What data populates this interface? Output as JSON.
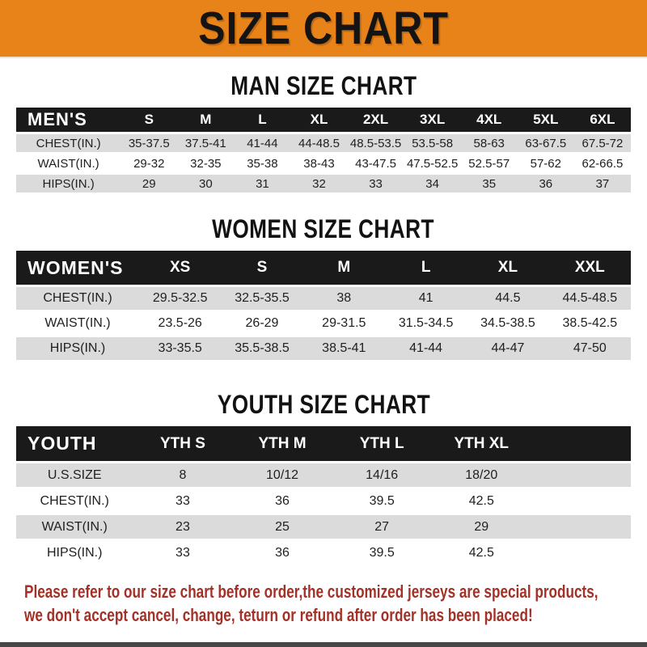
{
  "banner": {
    "title": "SIZE CHART"
  },
  "colors": {
    "banner_orange": "#E8831A",
    "header_black": "#1A1A1A",
    "row_gray": "#DBDBDB",
    "footer_red": "#A33127",
    "bottom_bar": "#474747"
  },
  "men": {
    "section_title": "MAN SIZE CHART",
    "header_label": "MEN'S",
    "columns": [
      "S",
      "M",
      "L",
      "XL",
      "2XL",
      "3XL",
      "4XL",
      "5XL",
      "6XL"
    ],
    "rows": [
      {
        "label": "CHEST(IN.)",
        "values": [
          "35-37.5",
          "37.5-41",
          "41-44",
          "44-48.5",
          "48.5-53.5",
          "53.5-58",
          "58-63",
          "63-67.5",
          "67.5-72"
        ]
      },
      {
        "label": "WAIST(IN.)",
        "values": [
          "29-32",
          "32-35",
          "35-38",
          "38-43",
          "43-47.5",
          "47.5-52.5",
          "52.5-57",
          "57-62",
          "62-66.5"
        ]
      },
      {
        "label": "HIPS(IN.)",
        "values": [
          "29",
          "30",
          "31",
          "32",
          "33",
          "34",
          "35",
          "36",
          "37"
        ]
      }
    ]
  },
  "women": {
    "section_title": "WOMEN SIZE CHART",
    "header_label": "WOMEN'S",
    "columns": [
      "XS",
      "S",
      "M",
      "L",
      "XL",
      "XXL"
    ],
    "rows": [
      {
        "label": "CHEST(IN.)",
        "values": [
          "29.5-32.5",
          "32.5-35.5",
          "38",
          "41",
          "44.5",
          "44.5-48.5"
        ]
      },
      {
        "label": "WAIST(IN.)",
        "values": [
          "23.5-26",
          "26-29",
          "29-31.5",
          "31.5-34.5",
          "34.5-38.5",
          "38.5-42.5"
        ]
      },
      {
        "label": "HIPS(IN.)",
        "values": [
          "33-35.5",
          "35.5-38.5",
          "38.5-41",
          "41-44",
          "44-47",
          "47-50"
        ]
      }
    ]
  },
  "youth": {
    "section_title": "YOUTH SIZE CHART",
    "header_label": "YOUTH",
    "columns": [
      "YTH S",
      "YTH M",
      "YTH L",
      "YTH XL"
    ],
    "trailing_empty": true,
    "rows": [
      {
        "label": "U.S.SIZE",
        "values": [
          "8",
          "10/12",
          "14/16",
          "18/20"
        ]
      },
      {
        "label": "CHEST(IN.)",
        "values": [
          "33",
          "36",
          "39.5",
          "42.5"
        ]
      },
      {
        "label": "WAIST(IN.)",
        "values": [
          "23",
          "25",
          "27",
          "29"
        ]
      },
      {
        "label": "HIPS(IN.)",
        "values": [
          "33",
          "36",
          "39.5",
          "42.5"
        ]
      }
    ]
  },
  "footer": {
    "line1": "Please refer to our size chart before order,the customized jerseys are special products,",
    "line2": "we don't accept cancel, change, teturn or refund after order has been placed!"
  }
}
